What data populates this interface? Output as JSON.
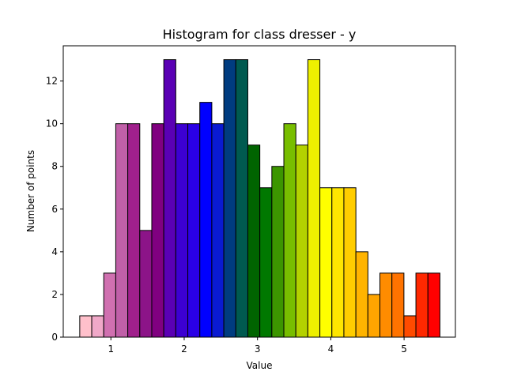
{
  "chart_data": {
    "type": "bar",
    "title": "Histogram for class dresser - y",
    "xlabel": "Value",
    "ylabel": "Number of points",
    "xlim": [
      0.35,
      5.7
    ],
    "ylim": [
      0,
      13.65
    ],
    "x_ticks": [
      1,
      2,
      3,
      4,
      5
    ],
    "y_ticks": [
      0,
      2,
      4,
      6,
      8,
      10,
      12
    ],
    "grid": false,
    "bin_start": 0.575,
    "bin_width": 0.1638,
    "values": [
      1,
      1,
      3,
      10,
      10,
      5,
      10,
      13,
      10,
      10,
      11,
      10,
      13,
      13,
      9,
      7,
      8,
      10,
      9,
      13,
      7,
      7,
      7,
      4,
      2,
      3,
      3,
      1,
      3,
      3
    ],
    "colors": [
      "#ffc0cb",
      "#f0a8c8",
      "#d070b0",
      "#c060a8",
      "#a0208c",
      "#8c1488",
      "#800080",
      "#5a00b4",
      "#3c00d2",
      "#2a00e6",
      "#0000ff",
      "#0a1ad2",
      "#003c80",
      "#005a50",
      "#006400",
      "#007800",
      "#3c9600",
      "#78be00",
      "#b4d200",
      "#eef000",
      "#ffff00",
      "#ffe600",
      "#ffcd00",
      "#ffb400",
      "#ffa500",
      "#ff8c00",
      "#ff7300",
      "#ff4b00",
      "#ff2800",
      "#ff0000"
    ]
  }
}
